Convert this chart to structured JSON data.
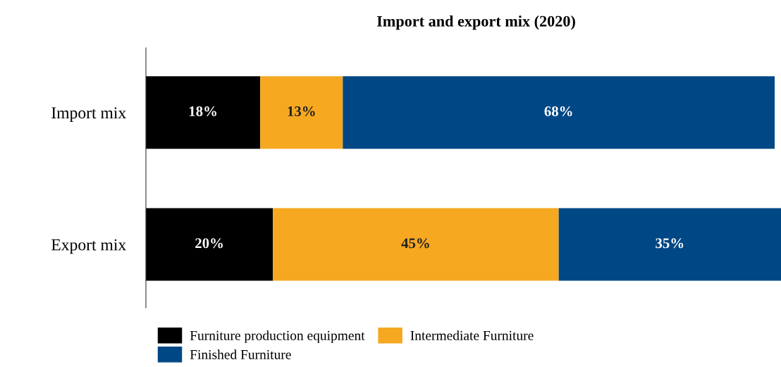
{
  "chart_data": {
    "type": "bar",
    "orientation": "horizontal",
    "stacked": true,
    "title": "Import and export mix (2020)",
    "categories": [
      "Import mix",
      "Export mix"
    ],
    "series": [
      {
        "name": "Furniture production equipment",
        "color": "#000000",
        "values": [
          18,
          20
        ],
        "value_labels": [
          "18%",
          "20%"
        ]
      },
      {
        "name": "Intermediate Furniture",
        "color": "#f6a821",
        "values": [
          13,
          45
        ],
        "value_labels": [
          "13%",
          "45%"
        ]
      },
      {
        "name": "Finished Furniture",
        "color": "#004785",
        "values": [
          68,
          35
        ],
        "value_labels": [
          "68%",
          "35%"
        ]
      }
    ],
    "xlim": [
      0,
      100
    ],
    "legend": "bottom",
    "grid": false,
    "tick_labels": "y"
  }
}
